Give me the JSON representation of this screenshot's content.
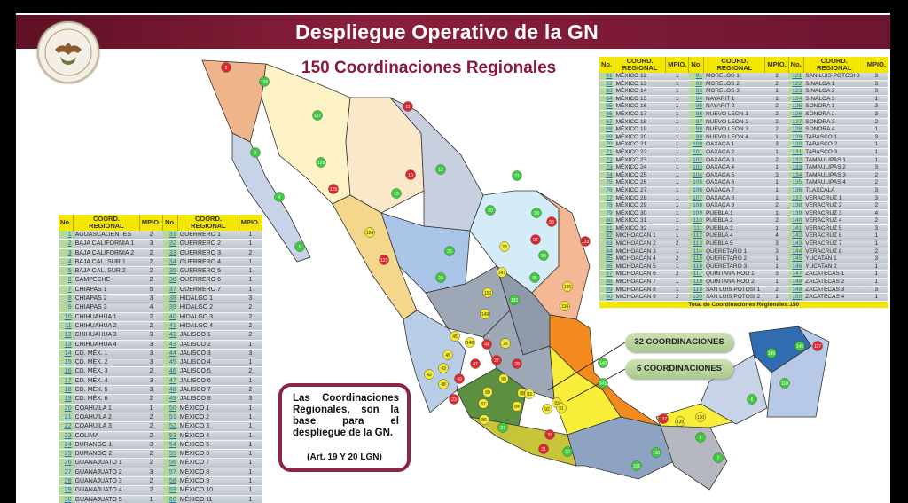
{
  "header": {
    "title": "Despliegue Operativo de la GN",
    "logo_text": "GUARDIA NACIONAL · JUSTICIA Y PAZ"
  },
  "subtitle": "150 Coordinaciones Regionales",
  "colors": {
    "header": "#7a1a34",
    "accent": "#8b1a3a",
    "table_header": "#f3e600",
    "marker_red": "#e3262b",
    "marker_green": "#3ccc3c",
    "marker_yellow": "#f2ea2a"
  },
  "table_headers": {
    "no": "No.",
    "coord": "COORD. REGIONAL",
    "mpio": "MPIO."
  },
  "left_table": {
    "col1": [
      [
        "1",
        "AGUASCALIENTES",
        "2"
      ],
      [
        "2",
        "BAJA CALIFORNIA 1",
        "3"
      ],
      [
        "3",
        "BAJA CALIFORNIA 2",
        "2"
      ],
      [
        "4",
        "BAJA CAL. SUR 1",
        "2"
      ],
      [
        "5",
        "BAJA CAL. SUR 2",
        "2"
      ],
      [
        "6",
        "CAMPECHE",
        "2"
      ],
      [
        "7",
        "CHIAPAS 1",
        "5"
      ],
      [
        "8",
        "CHIAPAS 2",
        "3"
      ],
      [
        "9",
        "CHIAPAS 3",
        "4"
      ],
      [
        "10",
        "CHIHUAHUA 1",
        "2"
      ],
      [
        "11",
        "CHIHUAHUA 2",
        "2"
      ],
      [
        "12",
        "CHIHUAHUA 3",
        "3"
      ],
      [
        "13",
        "CHIHUAHUA 4",
        "3"
      ],
      [
        "14",
        "CD. MÉX. 1",
        "3"
      ],
      [
        "15",
        "CD. MÉX. 2",
        "3"
      ],
      [
        "16",
        "CD. MÉX. 3",
        "2"
      ],
      [
        "17",
        "CD. MÉX. 4",
        "3"
      ],
      [
        "18",
        "CD. MÉX. 5",
        "3"
      ],
      [
        "19",
        "CD. MÉX. 6",
        "2"
      ],
      [
        "20",
        "COAHUILA 1",
        "1"
      ],
      [
        "21",
        "COAHUILA 2",
        "2"
      ],
      [
        "22",
        "COAHUILA 3",
        "2"
      ],
      [
        "23",
        "COLIMA",
        "2"
      ],
      [
        "24",
        "DURANGO 1",
        "3"
      ],
      [
        "25",
        "DURANGO 2",
        "2"
      ],
      [
        "26",
        "GUANAJUATO 1",
        "2"
      ],
      [
        "27",
        "GUANAJUATO 2",
        "3"
      ],
      [
        "28",
        "GUANAJUATO 3",
        "2"
      ],
      [
        "29",
        "GUANAJUATO 4",
        "2"
      ],
      [
        "30",
        "GUANAJUATO 5",
        "1"
      ]
    ],
    "col2": [
      [
        "31",
        "GUERRERO 1",
        "1"
      ],
      [
        "32",
        "GUERRERO 2",
        "1"
      ],
      [
        "33",
        "GUERRERO 3",
        "2"
      ],
      [
        "34",
        "GUERRERO 4",
        "1"
      ],
      [
        "35",
        "GUERRERO 5",
        "1"
      ],
      [
        "36",
        "GUERRERO 6",
        "1"
      ],
      [
        "37",
        "GUERRERO 7",
        "1"
      ],
      [
        "38",
        "HIDALGO 1",
        "3"
      ],
      [
        "39",
        "HIDALGO 2",
        "2"
      ],
      [
        "40",
        "HIDALGO 3",
        "2"
      ],
      [
        "41",
        "HIDALGO 4",
        "2"
      ],
      [
        "42",
        "JALISCO 1",
        "2"
      ],
      [
        "43",
        "JALISCO 2",
        "1"
      ],
      [
        "44",
        "JALISCO 3",
        "3"
      ],
      [
        "45",
        "JALISCO 4",
        "1"
      ],
      [
        "46",
        "JALISCO 5",
        "2"
      ],
      [
        "47",
        "JALISCO 6",
        "1"
      ],
      [
        "48",
        "JALISCO 7",
        "2"
      ],
      [
        "49",
        "JALISCO 8",
        "3"
      ],
      [
        "50",
        "MÉXICO 1",
        "1"
      ],
      [
        "51",
        "MÉXICO 2",
        "1"
      ],
      [
        "52",
        "MÉXICO 3",
        "1"
      ],
      [
        "53",
        "MÉXICO 4",
        "1"
      ],
      [
        "54",
        "MÉXICO 5",
        "1"
      ],
      [
        "55",
        "MÉXICO 6",
        "1"
      ],
      [
        "56",
        "MÉXICO 7",
        "1"
      ],
      [
        "57",
        "MÉXICO 8",
        "1"
      ],
      [
        "58",
        "MÉXICO 9",
        "1"
      ],
      [
        "59",
        "MÉXICO 10",
        "1"
      ],
      [
        "60",
        "MÉXICO 11",
        "1"
      ]
    ]
  },
  "right_table": {
    "col1": [
      [
        "61",
        "MÉXICO 12",
        "1"
      ],
      [
        "62",
        "MÉXICO 13",
        "1"
      ],
      [
        "63",
        "MÉXICO 14",
        "1"
      ],
      [
        "64",
        "MÉXICO 15",
        "1"
      ],
      [
        "65",
        "MÉXICO 16",
        "1"
      ],
      [
        "66",
        "MÉXICO 17",
        "1"
      ],
      [
        "67",
        "MÉXICO 18",
        "1"
      ],
      [
        "68",
        "MÉXICO 19",
        "1"
      ],
      [
        "69",
        "MÉXICO 20",
        "1"
      ],
      [
        "70",
        "MÉXICO 21",
        "1"
      ],
      [
        "71",
        "MÉXICO 22",
        "1"
      ],
      [
        "72",
        "MÉXICO 23",
        "1"
      ],
      [
        "73",
        "MÉXICO 24",
        "1"
      ],
      [
        "74",
        "MÉXICO 25",
        "1"
      ],
      [
        "75",
        "MÉXICO 26",
        "1"
      ],
      [
        "76",
        "MÉXICO 27",
        "1"
      ],
      [
        "77",
        "MÉXICO 28",
        "1"
      ],
      [
        "78",
        "MÉXICO 29",
        "1"
      ],
      [
        "79",
        "MÉXICO 30",
        "1"
      ],
      [
        "80",
        "MÉXICO 31",
        "1"
      ],
      [
        "81",
        "MÉXICO 32",
        "1"
      ],
      [
        "82",
        "MICHOACAN 1",
        "1"
      ],
      [
        "83",
        "MICHOACAN 2",
        "2"
      ],
      [
        "84",
        "MICHOACAN 3",
        "1"
      ],
      [
        "85",
        "MICHOACAN 4",
        "2"
      ],
      [
        "86",
        "MICHOACAN 5",
        "1"
      ],
      [
        "87",
        "MICHOACAN 6",
        "2"
      ],
      [
        "88",
        "MICHOACAN 7",
        "1"
      ],
      [
        "89",
        "MICHOACAN 8",
        "1"
      ],
      [
        "90",
        "MICHOACAN 9",
        "2"
      ]
    ],
    "col2": [
      [
        "91",
        "MORELOS 1",
        "2"
      ],
      [
        "92",
        "MORELOS 2",
        "2"
      ],
      [
        "93",
        "MORELOS 3",
        "1"
      ],
      [
        "94",
        "NAYARIT 1",
        "1"
      ],
      [
        "95",
        "NAYARIT 2",
        "2"
      ],
      [
        "96",
        "NUEVO LEON 1",
        "2"
      ],
      [
        "97",
        "NUEVO LEON 2",
        "2"
      ],
      [
        "98",
        "NUEVO LEON 3",
        "2"
      ],
      [
        "99",
        "NUEVO LEON 4",
        "1"
      ],
      [
        "100",
        "OAXACA 1",
        "3"
      ],
      [
        "101",
        "OAXACA 2",
        "1"
      ],
      [
        "102",
        "OAXACA 3",
        "2"
      ],
      [
        "103",
        "OAXACA 4",
        "1"
      ],
      [
        "104",
        "OAXACA 5",
        "3"
      ],
      [
        "105",
        "OAXACA 6",
        "1"
      ],
      [
        "106",
        "OAXACA 7",
        "1"
      ],
      [
        "107",
        "OAXACA 8",
        "1"
      ],
      [
        "108",
        "OAXACA 9",
        "2"
      ],
      [
        "109",
        "PUEBLA 1",
        "1"
      ],
      [
        "110",
        "PUEBLA 2",
        "2"
      ],
      [
        "111",
        "PUEBLA 3",
        "1"
      ],
      [
        "112",
        "PUEBLA 4",
        "4"
      ],
      [
        "113",
        "PUEBLA 5",
        "3"
      ],
      [
        "114",
        "QUERETARO 1",
        "3"
      ],
      [
        "115",
        "QUERETARO 2",
        "1"
      ],
      [
        "116",
        "QUERETARO 3",
        "1"
      ],
      [
        "117",
        "QUINTANA ROO 1",
        "3"
      ],
      [
        "118",
        "QUINTANA ROO 2",
        "1"
      ],
      [
        "119",
        "SAN LUIS POTOSI 1",
        "2"
      ],
      [
        "120",
        "SAN LUIS POTOSI 2",
        "1"
      ]
    ],
    "col3": [
      [
        "121",
        "SAN LUIS POTOSI 3",
        "3"
      ],
      [
        "122",
        "SINALOA 1",
        "3"
      ],
      [
        "123",
        "SINALOA 2",
        "3"
      ],
      [
        "124",
        "SINALOA 3",
        "1"
      ],
      [
        "125",
        "SONORA 1",
        "3"
      ],
      [
        "126",
        "SONORA 2",
        "3"
      ],
      [
        "127",
        "SONORA 3",
        "2"
      ],
      [
        "128",
        "SONORA 4",
        "1"
      ],
      [
        "129",
        "TABASCO 1",
        "3"
      ],
      [
        "130",
        "TABASCO 2",
        "1"
      ],
      [
        "131",
        "TABASCO 3",
        "1"
      ],
      [
        "132",
        "TAMAULIPAS 1",
        "1"
      ],
      [
        "133",
        "TAMAULIPAS 2",
        "3"
      ],
      [
        "134",
        "TAMAULIPAS 3",
        "2"
      ],
      [
        "135",
        "TAMAULIPAS 4",
        "2"
      ],
      [
        "136",
        "TLAXCALA",
        "3"
      ],
      [
        "137",
        "VERACRUZ 1",
        "3"
      ],
      [
        "138",
        "VERACRUZ 2",
        "2"
      ],
      [
        "139",
        "VERACRUZ 3",
        "4"
      ],
      [
        "140",
        "VERACRUZ 4",
        "2"
      ],
      [
        "141",
        "VERACRUZ 5",
        "3"
      ],
      [
        "142",
        "VERACRUZ 6",
        "1"
      ],
      [
        "143",
        "VERACRUZ 7",
        "1"
      ],
      [
        "144",
        "VERACRUZ 8",
        "2"
      ],
      [
        "145",
        "YUCATAN 1",
        "3"
      ],
      [
        "146",
        "YUCATAN 2",
        "1"
      ],
      [
        "147",
        "ZACATECAS 1",
        "1"
      ],
      [
        "148",
        "ZACATECAS 2",
        "1"
      ],
      [
        "149",
        "ZACATECAS 3",
        "3"
      ],
      [
        "150",
        "ZACATECAS 4",
        "1"
      ]
    ],
    "total_label": "Total de Coordinaciones Regionales:150"
  },
  "callouts": {
    "c32": "32 COORDINACIONES",
    "c6": "6 COORDINACIONES"
  },
  "infobox": {
    "text": "Las Coordinaciones Regionales, son la base para el despliegue de la GN.",
    "reference": "(Art. 19 Y 20 LGN)"
  },
  "map": {
    "markers": [
      {
        "label": "2",
        "status": "red"
      },
      {
        "label": "126",
        "status": "green"
      },
      {
        "label": "3",
        "status": "green"
      },
      {
        "label": "4",
        "status": "green"
      },
      {
        "label": "5",
        "status": "green"
      },
      {
        "label": "127",
        "status": "green"
      },
      {
        "label": "128",
        "status": "green"
      },
      {
        "label": "125",
        "status": "red"
      },
      {
        "label": "11",
        "status": "red"
      },
      {
        "label": "10",
        "status": "red"
      },
      {
        "label": "13",
        "status": "green"
      },
      {
        "label": "12",
        "status": "green"
      },
      {
        "label": "21",
        "status": "green"
      },
      {
        "label": "20",
        "status": "green"
      },
      {
        "label": "22",
        "status": "yellow"
      },
      {
        "label": "99",
        "status": "green"
      },
      {
        "label": "98",
        "status": "red"
      },
      {
        "label": "97",
        "status": "red"
      },
      {
        "label": "133",
        "status": "red"
      },
      {
        "label": "96",
        "status": "green"
      },
      {
        "label": "25",
        "status": "green"
      },
      {
        "label": "24",
        "status": "green"
      },
      {
        "label": "124",
        "status": "yellow"
      },
      {
        "label": "123",
        "status": "red"
      },
      {
        "label": "147",
        "status": "yellow"
      },
      {
        "label": "150",
        "status": "yellow"
      },
      {
        "label": "135",
        "status": "yellow"
      },
      {
        "label": "134",
        "status": "yellow"
      },
      {
        "label": "95",
        "status": "green"
      },
      {
        "label": "149",
        "status": "yellow"
      },
      {
        "label": "120",
        "status": "green"
      },
      {
        "label": "45",
        "status": "yellow"
      },
      {
        "label": "148",
        "status": "yellow"
      },
      {
        "label": "44",
        "status": "red"
      },
      {
        "label": "26",
        "status": "yellow"
      },
      {
        "label": "47",
        "status": "red"
      },
      {
        "label": "27",
        "status": "red"
      },
      {
        "label": "28",
        "status": "red"
      },
      {
        "label": "46",
        "status": "yellow"
      },
      {
        "label": "43",
        "status": "yellow"
      },
      {
        "label": "42",
        "status": "yellow"
      },
      {
        "label": "48",
        "status": "yellow"
      },
      {
        "label": "49",
        "status": "red"
      },
      {
        "label": "23",
        "status": "red"
      },
      {
        "label": "90",
        "status": "yellow"
      },
      {
        "label": "89",
        "status": "yellow"
      },
      {
        "label": "88",
        "status": "yellow"
      },
      {
        "label": "87",
        "status": "yellow"
      },
      {
        "label": "83",
        "status": "yellow"
      },
      {
        "label": "84",
        "status": "yellow"
      },
      {
        "label": "86",
        "status": "yellow"
      },
      {
        "label": "37",
        "status": "green"
      },
      {
        "label": "33",
        "status": "red"
      },
      {
        "label": "31",
        "status": "red"
      },
      {
        "label": "32",
        "status": "green"
      },
      {
        "label": "140",
        "status": "green"
      },
      {
        "label": "141",
        "status": "green"
      },
      {
        "label": "137",
        "status": "red"
      },
      {
        "label": "139",
        "status": "yellow"
      },
      {
        "label": "130",
        "status": "yellow"
      },
      {
        "label": "8",
        "status": "green"
      },
      {
        "label": "7",
        "status": "green"
      },
      {
        "label": "145",
        "status": "green"
      },
      {
        "label": "146",
        "status": "green"
      },
      {
        "label": "117",
        "status": "red"
      },
      {
        "label": "118",
        "status": "green"
      },
      {
        "label": "6",
        "status": "green"
      },
      {
        "label": "100",
        "status": "green"
      },
      {
        "label": "101",
        "status": "green"
      },
      {
        "label": "93",
        "status": "yellow"
      },
      {
        "label": "91",
        "status": "yellow"
      },
      {
        "label": "92",
        "status": "yellow"
      }
    ]
  }
}
